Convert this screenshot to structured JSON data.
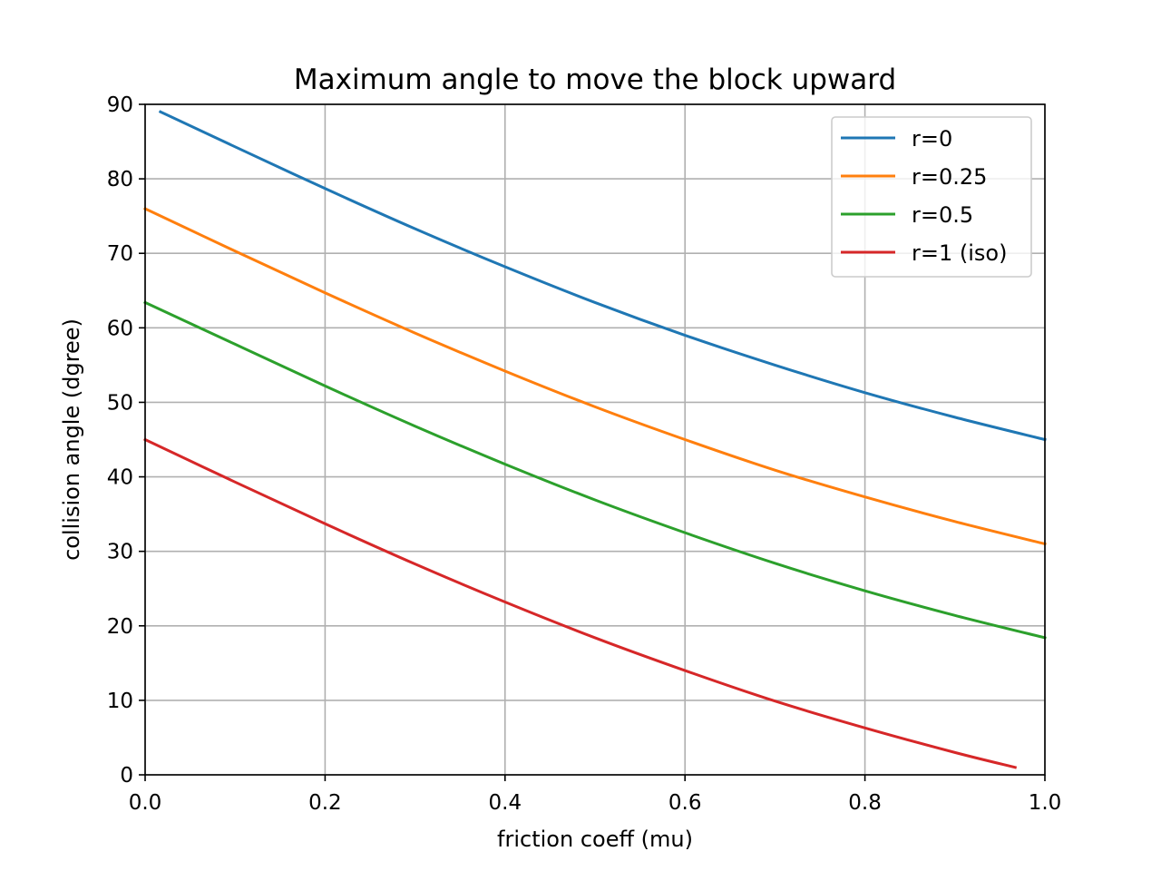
{
  "chart_data": {
    "type": "line",
    "title": "Maximum angle to move the block upward",
    "xlabel": "friction coeff (mu)",
    "ylabel": "collision angle (dgree)",
    "xlim": [
      0.0,
      1.0
    ],
    "ylim": [
      0,
      90
    ],
    "xticks": [
      "0.0",
      "0.2",
      "0.4",
      "0.6",
      "0.8",
      "1.0"
    ],
    "yticks": [
      "0",
      "10",
      "20",
      "30",
      "40",
      "50",
      "60",
      "70",
      "80",
      "90"
    ],
    "grid": true,
    "legend_position": "top-right",
    "series": [
      {
        "name": "r=0",
        "color": "#1f77b4",
        "x": [
          0.017,
          0.1,
          0.2,
          0.3,
          0.4,
          0.5,
          0.6,
          0.7,
          0.8,
          0.9,
          1.0
        ],
        "y": [
          89.0,
          84.3,
          78.7,
          73.3,
          68.2,
          63.4,
          59.0,
          55.0,
          51.3,
          48.0,
          45.0
        ]
      },
      {
        "name": "r=0.25",
        "color": "#ff7f0e",
        "x": [
          0.0,
          0.1,
          0.2,
          0.3,
          0.4,
          0.5,
          0.6,
          0.7,
          0.8,
          0.9,
          1.0
        ],
        "y": [
          76.0,
          70.3,
          64.7,
          59.3,
          54.2,
          49.4,
          45.0,
          40.9,
          37.3,
          34.0,
          31.0
        ]
      },
      {
        "name": "r=0.5",
        "color": "#2ca02c",
        "x": [
          0.0,
          0.1,
          0.2,
          0.3,
          0.4,
          0.5,
          0.6,
          0.7,
          0.8,
          0.9,
          1.0
        ],
        "y": [
          63.4,
          57.8,
          52.2,
          46.8,
          41.7,
          36.9,
          32.5,
          28.4,
          24.7,
          21.4,
          18.4
        ]
      },
      {
        "name": "r=1 (iso)",
        "color": "#d62728",
        "x": [
          0.0,
          0.1,
          0.2,
          0.3,
          0.4,
          0.5,
          0.6,
          0.7,
          0.8,
          0.9,
          0.967
        ],
        "y": [
          45.0,
          39.3,
          33.7,
          28.3,
          23.2,
          18.4,
          14.0,
          9.9,
          6.3,
          3.0,
          1.0
        ]
      }
    ]
  }
}
